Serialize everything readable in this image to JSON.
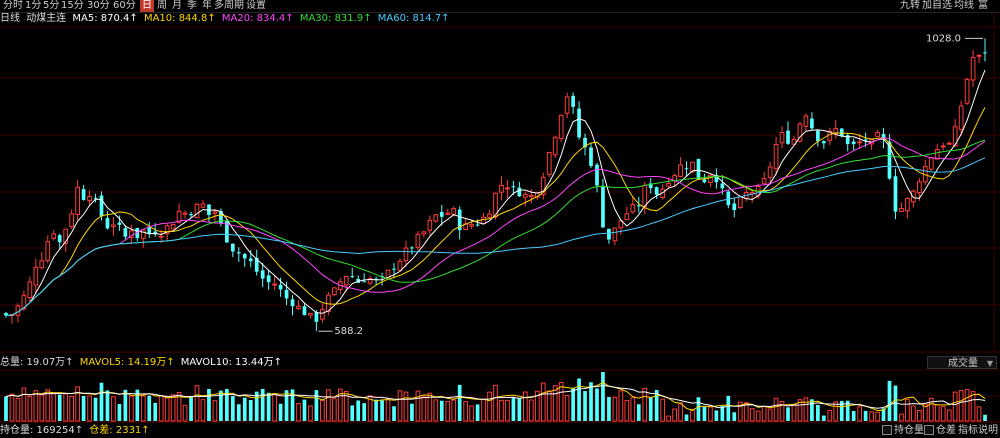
{
  "toolbar": {
    "periods": [
      "分时",
      "1分",
      "5分",
      "15分",
      "30分",
      "60分",
      "日",
      "周",
      "月",
      "季",
      "年",
      "多周期",
      "设置"
    ],
    "active_index": 6,
    "right": [
      "九转",
      "加自选",
      "均线",
      "富"
    ]
  },
  "info": {
    "period": "日线",
    "name": "动煤主连",
    "ma5": "MA5: 870.4↑",
    "ma10": "MA10: 844.8↑",
    "ma20": "MA20: 834.4↑",
    "ma30": "MA30: 831.9↑",
    "ma60": "MA60: 814.7↑"
  },
  "annotations": {
    "high": "1028.0",
    "low": "588.2"
  },
  "volume_info": {
    "total": "总量: 19.07万↑",
    "mavol5": "MAVOL5: 14.19万↑",
    "mavol10": "MAVOL10: 13.44万↑",
    "selector": "成交量"
  },
  "bottom": {
    "oi": "持仓量: 169254↑",
    "diff": "仓差: 2331↑",
    "btn_oi": "持仓量",
    "btn_diff": "仓差",
    "btn_help": "指标说明"
  },
  "colors": {
    "up": "#ff3b3b",
    "down": "#54ffff",
    "ma5": "#ffffff",
    "ma10": "#ffd700",
    "ma20": "#ff44ff",
    "ma30": "#33dd33",
    "ma60": "#44ccff",
    "active_tab": "#c0392b"
  },
  "chart_data": {
    "type": "candlestick",
    "price_high": 1028.0,
    "price_low": 588.2,
    "path": [
      [
        0,
        615
      ],
      [
        6,
        612
      ],
      [
        12,
        614
      ],
      [
        18,
        625
      ],
      [
        24,
        640
      ],
      [
        30,
        660
      ],
      [
        36,
        690
      ],
      [
        42,
        700
      ],
      [
        48,
        725
      ],
      [
        54,
        740
      ],
      [
        60,
        720
      ],
      [
        66,
        745
      ],
      [
        72,
        770
      ],
      [
        78,
        805
      ],
      [
        84,
        790
      ],
      [
        90,
        798
      ],
      [
        96,
        780
      ],
      [
        102,
        760
      ],
      [
        108,
        745
      ],
      [
        114,
        752
      ],
      [
        120,
        740
      ],
      [
        126,
        728
      ],
      [
        132,
        745
      ],
      [
        138,
        730
      ],
      [
        144,
        740
      ],
      [
        150,
        735
      ],
      [
        156,
        740
      ],
      [
        162,
        738
      ],
      [
        168,
        745
      ],
      [
        174,
        755
      ],
      [
        180,
        770
      ],
      [
        186,
        765
      ],
      [
        192,
        770
      ],
      [
        198,
        775
      ],
      [
        204,
        778
      ],
      [
        210,
        760
      ],
      [
        216,
        770
      ],
      [
        222,
        742
      ],
      [
        228,
        725
      ],
      [
        234,
        710
      ],
      [
        240,
        705
      ],
      [
        246,
        695
      ],
      [
        252,
        690
      ],
      [
        258,
        675
      ],
      [
        264,
        665
      ],
      [
        270,
        660
      ],
      [
        276,
        660
      ],
      [
        282,
        645
      ],
      [
        288,
        635
      ],
      [
        294,
        632
      ],
      [
        300,
        620
      ],
      [
        306,
        616
      ],
      [
        312,
        605
      ],
      [
        318,
        608
      ],
      [
        324,
        630
      ],
      [
        330,
        640
      ],
      [
        336,
        650
      ],
      [
        342,
        668
      ],
      [
        348,
        675
      ],
      [
        354,
        668
      ],
      [
        360,
        660
      ],
      [
        366,
        672
      ],
      [
        372,
        664
      ],
      [
        378,
        662
      ],
      [
        384,
        665
      ],
      [
        390,
        680
      ],
      [
        396,
        690
      ],
      [
        402,
        700
      ],
      [
        408,
        710
      ],
      [
        414,
        720
      ],
      [
        420,
        730
      ],
      [
        426,
        740
      ],
      [
        432,
        755
      ],
      [
        438,
        765
      ],
      [
        444,
        760
      ],
      [
        450,
        770
      ],
      [
        456,
        764
      ],
      [
        462,
        736
      ],
      [
        468,
        750
      ],
      [
        474,
        748
      ],
      [
        480,
        755
      ],
      [
        486,
        760
      ],
      [
        492,
        780
      ],
      [
        498,
        803
      ],
      [
        504,
        812
      ],
      [
        510,
        806
      ],
      [
        516,
        796
      ],
      [
        522,
        800
      ],
      [
        528,
        785
      ],
      [
        534,
        795
      ],
      [
        540,
        810
      ],
      [
        546,
        840
      ],
      [
        552,
        870
      ],
      [
        558,
        900
      ],
      [
        564,
        935
      ],
      [
        570,
        950
      ],
      [
        576,
        890
      ],
      [
        582,
        870
      ],
      [
        588,
        855
      ],
      [
        594,
        830
      ],
      [
        600,
        775
      ],
      [
        606,
        725
      ],
      [
        612,
        730
      ],
      [
        618,
        750
      ],
      [
        624,
        760
      ],
      [
        630,
        772
      ],
      [
        636,
        770
      ],
      [
        642,
        790
      ],
      [
        648,
        815
      ],
      [
        654,
        800
      ],
      [
        660,
        790
      ],
      [
        666,
        820
      ],
      [
        672,
        815
      ],
      [
        678,
        840
      ],
      [
        684,
        830
      ],
      [
        690,
        850
      ],
      [
        696,
        825
      ],
      [
        702,
        810
      ],
      [
        708,
        825
      ],
      [
        714,
        828
      ],
      [
        720,
        806
      ],
      [
        726,
        780
      ],
      [
        732,
        765
      ],
      [
        738,
        778
      ],
      [
        744,
        790
      ],
      [
        750,
        800
      ],
      [
        756,
        795
      ],
      [
        762,
        805
      ],
      [
        768,
        825
      ],
      [
        774,
        860
      ],
      [
        780,
        882
      ],
      [
        786,
        880
      ],
      [
        792,
        870
      ],
      [
        798,
        890
      ],
      [
        804,
        925
      ],
      [
        810,
        900
      ],
      [
        816,
        885
      ],
      [
        822,
        870
      ],
      [
        828,
        880
      ],
      [
        834,
        890
      ],
      [
        840,
        892
      ],
      [
        846,
        868
      ],
      [
        852,
        865
      ],
      [
        858,
        868
      ],
      [
        864,
        880
      ],
      [
        870,
        865
      ],
      [
        876,
        878
      ],
      [
        882,
        882
      ],
      [
        888,
        840
      ],
      [
        894,
        775
      ],
      [
        900,
        770
      ],
      [
        906,
        782
      ],
      [
        912,
        790
      ],
      [
        918,
        815
      ],
      [
        924,
        830
      ],
      [
        930,
        850
      ],
      [
        936,
        860
      ],
      [
        942,
        872
      ],
      [
        948,
        865
      ],
      [
        954,
        880
      ],
      [
        960,
        920
      ],
      [
        966,
        960
      ],
      [
        972,
        1000
      ],
      [
        978,
        995
      ],
      [
        984,
        1012
      ],
      [
        988,
        1005
      ]
    ]
  }
}
